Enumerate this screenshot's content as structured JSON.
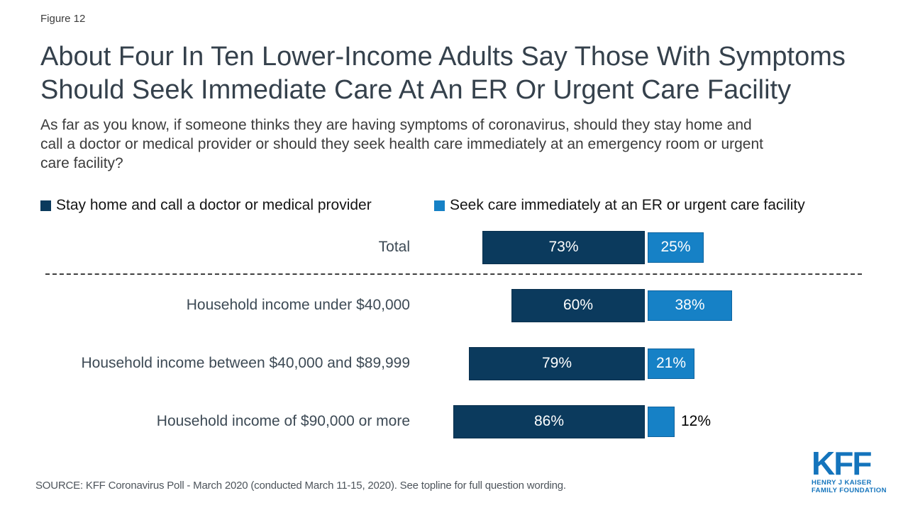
{
  "page": {
    "figure_label": "Figure 12"
  },
  "header": {
    "title_lines": [
      "About Four In Ten Lower-Income Adults Say Those With Symptoms",
      "Should Seek Immediate Care At An ER Or Urgent Care Facility"
    ],
    "subtitle_lines": [
      "As far as you know, if someone thinks they are having symptoms of coronavirus, should they stay home and",
      "call a doctor or medical provider or should they seek health care immediately at an emergency room or urgent",
      "care facility?"
    ]
  },
  "chart_data": {
    "type": "bar",
    "orientation": "horizontal-stacked",
    "legend_position": "top",
    "xlim": [
      0,
      100
    ],
    "value_suffix": "%",
    "grid": false,
    "divider_after_category": "Total",
    "categories": [
      "Total",
      "Household income under $40,000",
      "Household income between $40,000 and $89,999",
      "Household income of $90,000 or more"
    ],
    "series": [
      {
        "name": "Stay home and call a doctor or medical provider",
        "color": "#0B3A5D",
        "values": [
          73,
          60,
          79,
          86
        ]
      },
      {
        "name": "Seek care immediately at an ER or urgent care facility",
        "color": "#1681C6",
        "values": [
          25,
          38,
          21,
          12
        ]
      }
    ]
  },
  "footer": {
    "source": "SOURCE: KFF Coronavirus Poll - March 2020 (conducted March 11-15, 2020). See topline for full question wording.",
    "logo": {
      "text": "KFF",
      "subtext_lines": [
        "HENRY J KAISER",
        "FAMILY FOUNDATION"
      ],
      "color": "#1474BC"
    }
  },
  "colors": {
    "stay_home_bar": "#0B3A5D",
    "seek_care_bar": "#1681C6",
    "title_text": "#35414c",
    "body_text": "#3c3c3c",
    "category_text": "#3d4a55",
    "divider": "#3f3f3f"
  }
}
